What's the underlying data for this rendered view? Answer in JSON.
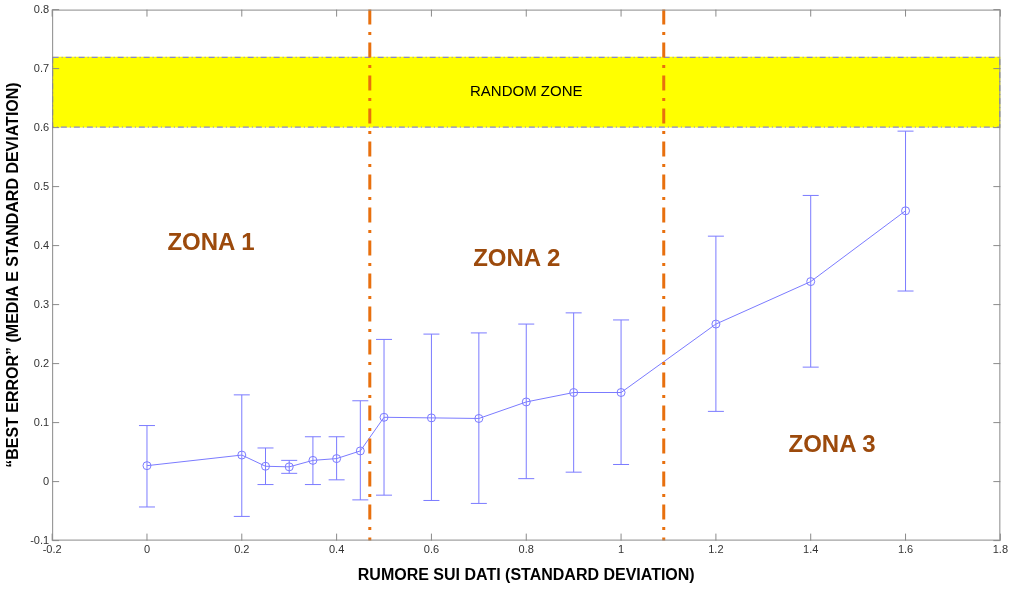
{
  "chart_data": {
    "type": "line",
    "xlabel": "RUMORE SUI DATI (STANDARD DEVIATION)",
    "ylabel": "“BEST ERROR” (MEDIA E STANDARD DEVIATION)",
    "x": [
      0,
      0.2,
      0.25,
      0.3,
      0.35,
      0.4,
      0.45,
      0.5,
      0.6,
      0.7,
      0.8,
      0.9,
      1.0,
      1.2,
      1.4,
      1.6
    ],
    "series": [
      {
        "color": "#7b7bff",
        "values": [
          0.027,
          0.045,
          0.026,
          0.025,
          0.036,
          0.039,
          0.052,
          0.109,
          0.108,
          0.107,
          0.135,
          0.151,
          0.151,
          0.267,
          0.339,
          0.459
        ],
        "errors": [
          [
            -0.043,
            0.095
          ],
          [
            -0.059,
            0.147
          ],
          [
            -0.005,
            0.057
          ],
          [
            0.014,
            0.036
          ],
          [
            -0.005,
            0.076
          ],
          [
            0.003,
            0.076
          ],
          [
            -0.031,
            0.137
          ],
          [
            -0.023,
            0.241
          ],
          [
            -0.032,
            0.25
          ],
          [
            -0.037,
            0.252
          ],
          [
            0.005,
            0.267
          ],
          [
            0.016,
            0.286
          ],
          [
            0.029,
            0.274
          ],
          [
            0.119,
            0.416
          ],
          [
            0.194,
            0.485
          ],
          [
            0.323,
            0.594
          ]
        ]
      }
    ],
    "xlim": [
      -0.2,
      1.8
    ],
    "xticks": [
      -0.2,
      0,
      0.2,
      0.4,
      0.6,
      0.8,
      1,
      1.2,
      1.4,
      1.6,
      1.8
    ],
    "ylim": [
      -0.1,
      0.8
    ],
    "yticks": [
      -0.1,
      0,
      0.1,
      0.2,
      0.3,
      0.4,
      0.5,
      0.6,
      0.7,
      0.8
    ],
    "marker": "circle",
    "line_style": "solid",
    "grid": false,
    "legend": false,
    "bands": [
      {
        "axis": "y",
        "from": 0.6,
        "to": 0.72,
        "label": "RANDOM ZONE",
        "color": "#ffff00"
      }
    ],
    "ref_lines": [
      {
        "axis": "x",
        "value": 0.47,
        "color": "#e8700e",
        "line_style": "dashed"
      },
      {
        "axis": "x",
        "value": 1.09,
        "color": "#e8700e",
        "line_style": "dashed"
      }
    ],
    "annotations": [
      "ZONA 1",
      "ZONA 2",
      "ZONA 3"
    ]
  }
}
